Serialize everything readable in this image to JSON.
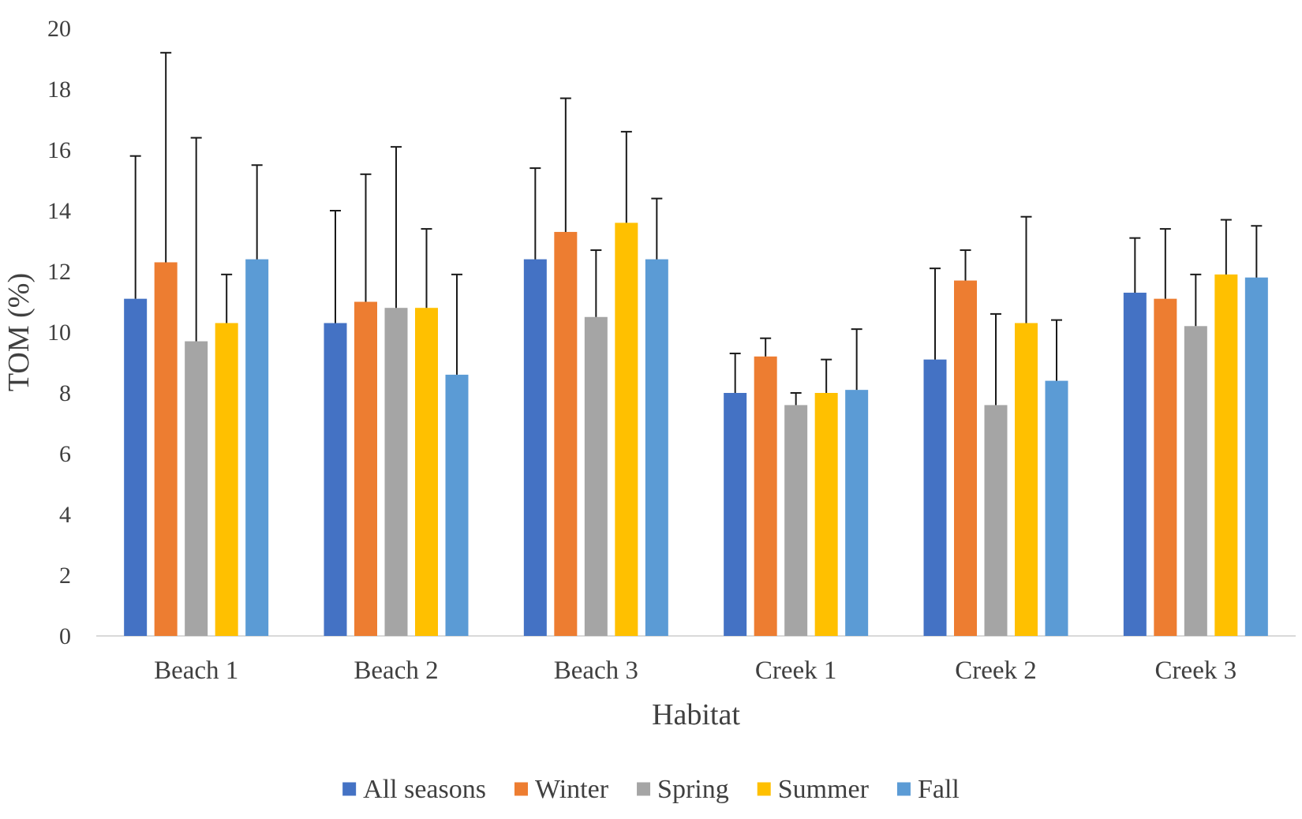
{
  "chart_data": {
    "type": "bar",
    "title": "",
    "xlabel": "Habitat",
    "ylabel": "TOM (%)",
    "ylim": [
      0,
      20
    ],
    "yticks": [
      "0",
      "2",
      "4",
      "6",
      "8",
      "10",
      "12",
      "14",
      "16",
      "18",
      "20"
    ],
    "grid": false,
    "legend_position": "bottom",
    "error_bars": true,
    "categories": [
      "Beach 1",
      "Beach 2",
      "Beach 3",
      "Creek 1",
      "Creek 2",
      "Creek 3"
    ],
    "series": [
      {
        "name": "All seasons",
        "color": "#4472C4",
        "values": [
          11.1,
          10.3,
          12.4,
          8.0,
          9.1,
          11.3
        ],
        "errors": [
          4.7,
          3.7,
          3.0,
          1.3,
          3.0,
          1.8
        ]
      },
      {
        "name": "Winter",
        "color": "#ED7D31",
        "values": [
          12.3,
          11.0,
          13.3,
          9.2,
          11.7,
          11.1
        ],
        "errors": [
          6.9,
          4.2,
          4.4,
          0.6,
          1.0,
          2.3
        ]
      },
      {
        "name": "Spring",
        "color": "#A5A5A5",
        "values": [
          9.7,
          10.8,
          10.5,
          7.6,
          7.6,
          10.2
        ],
        "errors": [
          6.7,
          5.3,
          2.2,
          0.4,
          3.0,
          1.7
        ]
      },
      {
        "name": "Summer",
        "color": "#FFC000",
        "values": [
          10.3,
          10.8,
          13.6,
          8.0,
          10.3,
          11.9
        ],
        "errors": [
          1.6,
          2.6,
          3.0,
          1.1,
          3.5,
          1.8
        ]
      },
      {
        "name": "Fall",
        "color": "#5B9BD5",
        "values": [
          12.4,
          8.6,
          12.4,
          8.1,
          8.4,
          11.8
        ],
        "errors": [
          3.1,
          3.3,
          2.0,
          2.0,
          2.0,
          1.7
        ]
      }
    ]
  }
}
